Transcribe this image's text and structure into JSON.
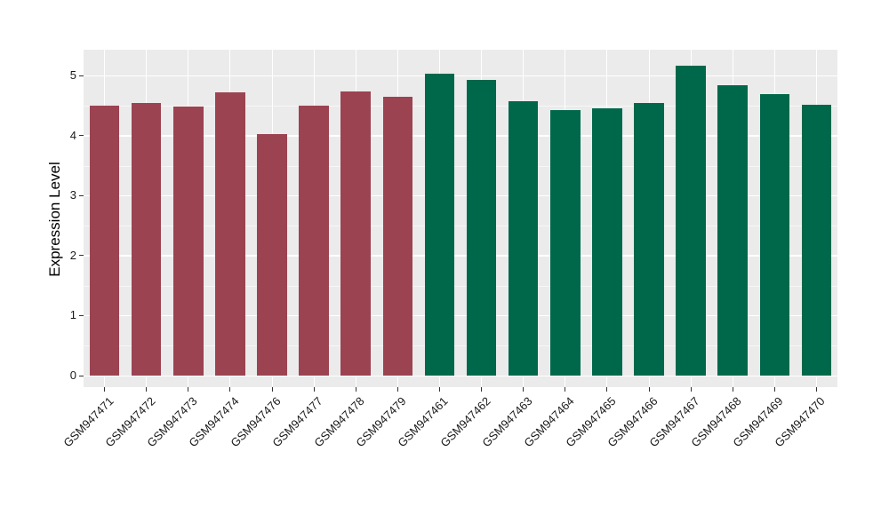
{
  "page": {
    "background_color": "#FFFFFF"
  },
  "chart_data": {
    "type": "bar",
    "title": "",
    "xlabel": "",
    "ylabel": "Expression Level",
    "ylim_displayed": [
      -0.26,
      5.43
    ],
    "yticks": [
      0,
      1,
      2,
      3,
      4,
      5
    ],
    "yticks_minor": [
      0.5,
      1.5,
      2.5,
      3.5,
      4.5
    ],
    "grid": "white major and minor horizontal gridlines plus vertical category gridlines on grey panel",
    "legend_position": "none",
    "panel_background": "#EBEBEB",
    "gridline_color": "#FFFFFF",
    "axis_text_color": "#1A1A1A",
    "group_colors": {
      "left_group": "#9C4352",
      "right_group": "#00684A"
    },
    "bars": [
      {
        "label": "GSM947471",
        "value": 4.5,
        "color": "#9C4352"
      },
      {
        "label": "GSM947472",
        "value": 4.55,
        "color": "#9C4352"
      },
      {
        "label": "GSM947473",
        "value": 4.48,
        "color": "#9C4352"
      },
      {
        "label": "GSM947474",
        "value": 4.72,
        "color": "#9C4352"
      },
      {
        "label": "GSM947476",
        "value": 4.03,
        "color": "#9C4352"
      },
      {
        "label": "GSM947477",
        "value": 4.5,
        "color": "#9C4352"
      },
      {
        "label": "GSM947478",
        "value": 4.74,
        "color": "#9C4352"
      },
      {
        "label": "GSM947479",
        "value": 4.65,
        "color": "#9C4352"
      },
      {
        "label": "GSM947461",
        "value": 5.03,
        "color": "#00684A"
      },
      {
        "label": "GSM947462",
        "value": 4.93,
        "color": "#00684A"
      },
      {
        "label": "GSM947463",
        "value": 4.58,
        "color": "#00684A"
      },
      {
        "label": "GSM947464",
        "value": 4.43,
        "color": "#00684A"
      },
      {
        "label": "GSM947465",
        "value": 4.46,
        "color": "#00684A"
      },
      {
        "label": "GSM947466",
        "value": 4.54,
        "color": "#00684A"
      },
      {
        "label": "GSM947467",
        "value": 5.17,
        "color": "#00684A"
      },
      {
        "label": "GSM947468",
        "value": 4.84,
        "color": "#00684A"
      },
      {
        "label": "GSM947469",
        "value": 4.69,
        "color": "#00684A"
      },
      {
        "label": "GSM947470",
        "value": 4.52,
        "color": "#00684A"
      }
    ]
  }
}
